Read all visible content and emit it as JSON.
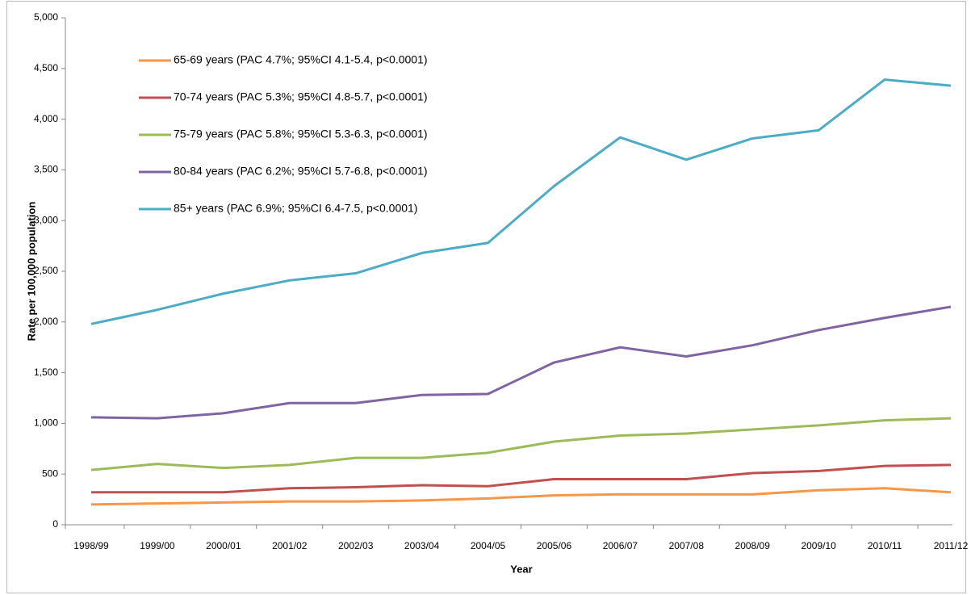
{
  "chart_data": {
    "type": "line",
    "x_label": "Year",
    "y_label": "Rate per 100,000 population",
    "categories": [
      "1998/99",
      "1999/00",
      "2000/01",
      "2001/02",
      "2002/03",
      "2003/04",
      "2004/05",
      "2005/06",
      "2006/07",
      "2007/08",
      "2008/09",
      "2009/10",
      "2010/11",
      "2011/12"
    ],
    "series": [
      {
        "name": "65-69 years (PAC 4.7%; 95%CI 4.1-5.4, p<0.0001)",
        "color": "#f79646",
        "values": [
          200,
          210,
          220,
          230,
          230,
          240,
          260,
          290,
          300,
          300,
          300,
          340,
          360,
          320
        ]
      },
      {
        "name": "70-74 years (PAC 5.3%; 95%CI 4.8-5.7,  p<0.0001)",
        "color": "#c0504d",
        "values": [
          320,
          320,
          320,
          360,
          370,
          390,
          380,
          450,
          450,
          450,
          510,
          530,
          580,
          590
        ]
      },
      {
        "name": "75-79 years (PAC 5.8%; 95%CI 5.3-6.3,  p<0.0001)",
        "color": "#9bbb59",
        "values": [
          540,
          600,
          560,
          590,
          660,
          660,
          710,
          820,
          880,
          900,
          940,
          980,
          1030,
          1050
        ]
      },
      {
        "name": "80-84 years (PAC 6.2%; 95%CI 5.7-6.8,  p<0.0001)",
        "color": "#8064a2",
        "values": [
          1060,
          1050,
          1100,
          1200,
          1200,
          1280,
          1290,
          1600,
          1750,
          1660,
          1770,
          1920,
          2040,
          2150
        ]
      },
      {
        "name": "85+ years (PAC 6.9%; 95%CI 6.4-7.5,  p<0.0001)",
        "color": "#4bacc6",
        "values": [
          1980,
          2120,
          2280,
          2410,
          2480,
          2680,
          2780,
          3340,
          3820,
          3600,
          3810,
          3890,
          4390,
          4330
        ]
      }
    ],
    "ylim": [
      0,
      5000
    ],
    "yticks": [
      0,
      500,
      {
        "value": 1000,
        "label": "1,000"
      },
      {
        "value": 1500,
        "label": "1,500"
      },
      {
        "value": 2000,
        "label": "2,000"
      },
      {
        "value": 2500,
        "label": "2,500"
      },
      {
        "value": 3000,
        "label": "3,000"
      },
      {
        "value": 3500,
        "label": "3,500"
      },
      {
        "value": 4000,
        "label": "4,000"
      },
      {
        "value": 4500,
        "label": "4,500"
      },
      {
        "value": 5000,
        "label": "5,000"
      }
    ],
    "legend": "upper left"
  }
}
